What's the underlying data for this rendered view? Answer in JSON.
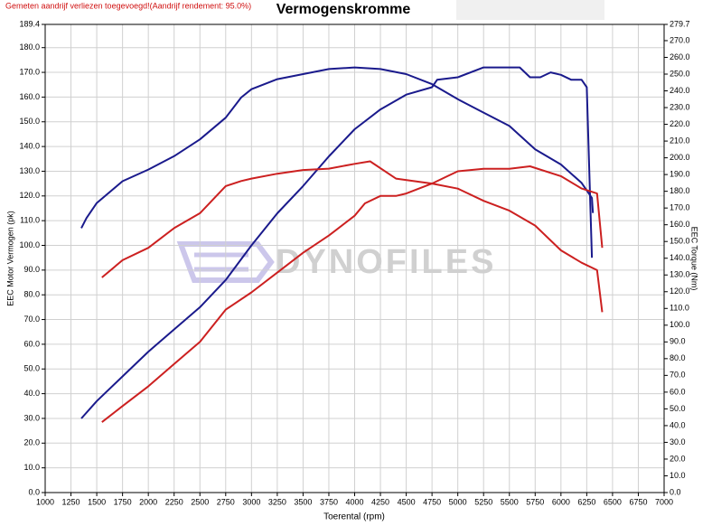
{
  "chart_data": {
    "type": "line",
    "title": "Vermogenskromme",
    "note": "Gemeten aandrijf verliezen toegevoegd!(Aandrijf rendement: 95.0%)",
    "watermark": "DYNOFILES",
    "xlabel": "Toerental (rpm)",
    "ylabel": "EEC Motor Vermogen (pk)",
    "y2label": "EEC Torque (Nm)",
    "grid": true,
    "xlim": [
      1000,
      7000
    ],
    "xticks": [
      1000,
      1250,
      1500,
      1750,
      2000,
      2250,
      2500,
      2750,
      3000,
      3250,
      3500,
      3750,
      4000,
      4250,
      4500,
      4750,
      5000,
      5250,
      5500,
      5750,
      6000,
      6250,
      6500,
      6750,
      7000
    ],
    "ylim": [
      0,
      189.4
    ],
    "yticks": [
      {
        "value": 0,
        "label": "0.0"
      },
      {
        "value": 10,
        "label": "10.0"
      },
      {
        "value": 20,
        "label": "20.0"
      },
      {
        "value": 30,
        "label": "30.0"
      },
      {
        "value": 40,
        "label": "40.0"
      },
      {
        "value": 50,
        "label": "50.0"
      },
      {
        "value": 60,
        "label": "60.0"
      },
      {
        "value": 70,
        "label": "70.0"
      },
      {
        "value": 80,
        "label": "80.0"
      },
      {
        "value": 90,
        "label": "90.0"
      },
      {
        "value": 100,
        "label": "100.0"
      },
      {
        "value": 110,
        "label": "110.0"
      },
      {
        "value": 120,
        "label": "120.0"
      },
      {
        "value": 130,
        "label": "130.0"
      },
      {
        "value": 140,
        "label": "140.0"
      },
      {
        "value": 150,
        "label": "150.0"
      },
      {
        "value": 160,
        "label": "160.0"
      },
      {
        "value": 170,
        "label": "170.0"
      },
      {
        "value": 180,
        "label": "180.0"
      },
      189.4
    ],
    "y2lim": [
      0,
      279.7
    ],
    "y2ticks": [
      {
        "value": 0,
        "label": "0.0"
      },
      {
        "value": 10,
        "label": "10.0"
      },
      {
        "value": 20,
        "label": "20.0"
      },
      {
        "value": 30,
        "label": "30.0"
      },
      {
        "value": 40,
        "label": "40.0"
      },
      {
        "value": 50,
        "label": "50.0"
      },
      {
        "value": 60,
        "label": "60.0"
      },
      {
        "value": 70,
        "label": "70.0"
      },
      {
        "value": 80,
        "label": "80.0"
      },
      {
        "value": 90,
        "label": "90.0"
      },
      {
        "value": 100,
        "label": "100.0"
      },
      {
        "value": 110,
        "label": "110.0"
      },
      {
        "value": 120,
        "label": "120.0"
      },
      {
        "value": 130,
        "label": "130.0"
      },
      {
        "value": 140,
        "label": "140.0"
      },
      {
        "value": 150,
        "label": "150.0"
      },
      {
        "value": 160,
        "label": "160.0"
      },
      {
        "value": 170,
        "label": "170.0"
      },
      {
        "value": 180,
        "label": "180.0"
      },
      {
        "value": 190,
        "label": "190.0"
      },
      {
        "value": 200,
        "label": "200.0"
      },
      {
        "value": 210,
        "label": "210.0"
      },
      {
        "value": 220,
        "label": "220.0"
      },
      {
        "value": 230,
        "label": "230.0"
      },
      {
        "value": 240,
        "label": "240.0"
      },
      {
        "value": 250,
        "label": "250.0"
      },
      {
        "value": 260,
        "label": "260.0"
      },
      {
        "value": 270,
        "label": "270.0"
      },
      279.7
    ],
    "series": [
      {
        "color": "#1a1a8c",
        "axis": "y",
        "x": [
          1350,
          1500,
          1750,
          2000,
          2250,
          2500,
          2750,
          3000,
          3250,
          3500,
          3750,
          4000,
          4250,
          4500,
          4750,
          4800,
          5000,
          5250,
          5500,
          5600,
          5700,
          5800,
          5900,
          6000,
          6100,
          6200,
          6250,
          6300
        ],
        "values": [
          30,
          37,
          47,
          57,
          66,
          75,
          86,
          100,
          113,
          124,
          136,
          147,
          155,
          161,
          164,
          167,
          168,
          172,
          172,
          172,
          168,
          168,
          170,
          169,
          167,
          167,
          164,
          95
        ]
      },
      {
        "color": "#1a1a8c",
        "axis": "y2",
        "x": [
          1350,
          1400,
          1500,
          1750,
          2000,
          2250,
          2500,
          2750,
          2900,
          3000,
          3250,
          3500,
          3750,
          4000,
          4250,
          4500,
          4750,
          5000,
          5250,
          5500,
          5750,
          6000,
          6200,
          6300,
          6310
        ],
        "values": [
          158,
          164,
          173,
          186,
          193,
          201,
          211,
          224,
          236,
          241,
          247,
          250,
          253,
          254,
          253,
          250,
          244,
          235,
          227,
          219,
          205,
          196,
          185,
          176,
          167
        ]
      },
      {
        "color": "#cc2020",
        "axis": "y",
        "x": [
          1550,
          1750,
          2000,
          2250,
          2500,
          2750,
          3000,
          3250,
          3500,
          3750,
          4000,
          4100,
          4250,
          4400,
          4500,
          4750,
          4900,
          5000,
          5250,
          5500,
          5700,
          6000,
          6200,
          6350,
          6400
        ],
        "values": [
          28.5,
          35,
          43,
          52,
          61,
          74,
          81,
          89,
          97,
          104,
          112,
          117,
          120,
          120,
          121,
          125,
          128,
          130,
          131,
          131,
          132,
          128,
          123,
          121,
          99
        ]
      },
      {
        "color": "#cc2020",
        "axis": "y2",
        "x": [
          1550,
          1750,
          2000,
          2250,
          2500,
          2750,
          2900,
          3000,
          3250,
          3500,
          3750,
          4000,
          4150,
          4400,
          4750,
          5000,
          5250,
          5500,
          5750,
          6000,
          6200,
          6350,
          6400
        ],
        "values": [
          128.5,
          138.8,
          146.2,
          158,
          166.9,
          183.1,
          186.1,
          187.6,
          190.5,
          192.7,
          193.5,
          196.4,
          197.9,
          187.6,
          184.6,
          181.6,
          174.3,
          168.4,
          159.5,
          144.7,
          137.3,
          132.9,
          107.8
        ]
      }
    ]
  }
}
